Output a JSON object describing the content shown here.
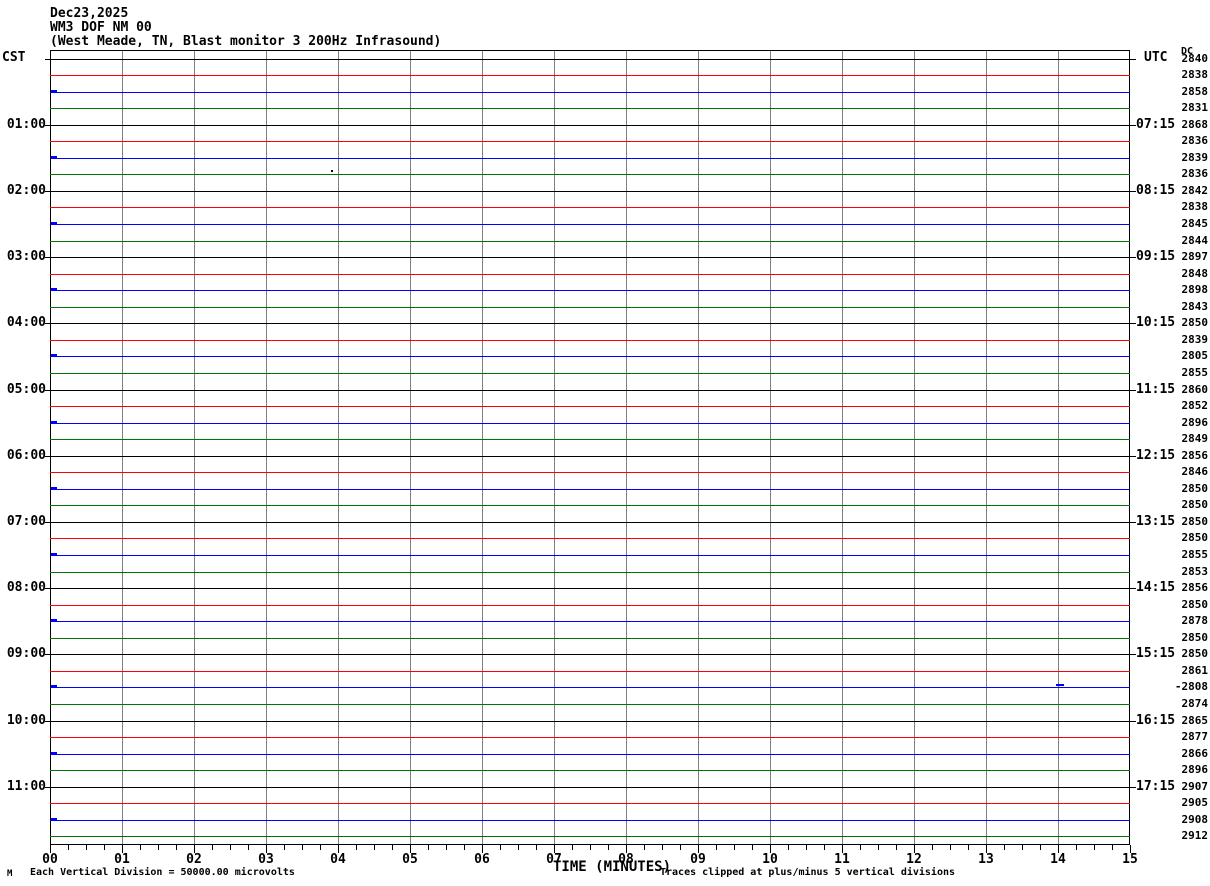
{
  "header": {
    "date": "Dec23,2025",
    "station_line": "WM3 DOF NM 00",
    "location_line": "(West Meade, TN, Blast monitor 3 200Hz Infrasound)"
  },
  "axis_labels": {
    "left": "CST",
    "right": "UTC",
    "dc": "DC",
    "x": "TIME (MINUTES)"
  },
  "footer": {
    "mark": "M",
    "scale_note": "Each Vertical Division = 50000.00 microvolts",
    "clip_note": "Traces clipped at plus/minus 5 vertical divisions"
  },
  "colors": {
    "trace_cycle": [
      "#000000",
      "#ff0000",
      "#0000ff",
      "#007700"
    ],
    "grid": "#808080",
    "frame": "#000000",
    "background": "#ffffff"
  },
  "chart_data": {
    "type": "line",
    "title": "Dec23,2025 WM3 DOF NM 00 (West Meade, TN, Blast monitor 3 200Hz Infrasound)",
    "xlabel": "TIME (MINUTES)",
    "x_range_minutes": [
      0,
      15
    ],
    "x_tick_labels": [
      "00",
      "01",
      "02",
      "03",
      "04",
      "05",
      "06",
      "07",
      "08",
      "09",
      "10",
      "11",
      "12",
      "13",
      "14",
      "15"
    ],
    "x_minor_ticks_per_minute": 4,
    "num_rows": 48,
    "rows_per_hour": 4,
    "trace_duration_minutes": 15,
    "row_color_cycle": [
      "black",
      "red",
      "blue",
      "green"
    ],
    "left_axis": "CST",
    "right_axis": "UTC",
    "left_hour_labels": [
      "01:00",
      "02:00",
      "03:00",
      "04:00",
      "05:00",
      "06:00",
      "07:00",
      "08:00",
      "09:00",
      "10:00",
      "11:00"
    ],
    "right_hour_labels": [
      "07:15",
      "08:15",
      "09:15",
      "10:15",
      "11:15",
      "12:15",
      "13:15",
      "14:15",
      "15:15",
      "16:15",
      "17:15"
    ],
    "dc_column_label": "DC",
    "dc_values": [
      "2840",
      "2838",
      "2858",
      "2831",
      "2868",
      "2836",
      "2839",
      "2836",
      "2842",
      "2838",
      "2845",
      "2844",
      "2897",
      "2848",
      "2898",
      "2843",
      "2850",
      "2839",
      "2805",
      "2855",
      "2860",
      "2852",
      "2896",
      "2849",
      "2856",
      "2846",
      "2850",
      "2850",
      "2850",
      "2850",
      "2855",
      "2853",
      "2856",
      "2850",
      "2878",
      "2850",
      "2850",
      "2861",
      "-2808",
      "2874",
      "2865",
      "2877",
      "2866",
      "2896",
      "2907",
      "2905",
      "2908",
      "2912"
    ],
    "baseline": "all 48 traces flat at their baselines (quiet record)",
    "events": [
      {
        "row": 7,
        "minute": 3.9,
        "shape": "dot",
        "color": "#000000"
      },
      {
        "row": 38,
        "minute": 14.0,
        "shape": "pulse",
        "color": "#0000ff"
      }
    ],
    "scale_note": "Each Vertical Division = 50000.00 microvolts",
    "clip_note": "Traces clipped at plus/minus 5 vertical divisions",
    "grid": "vertical gray line each minute",
    "legend_position": "none"
  }
}
